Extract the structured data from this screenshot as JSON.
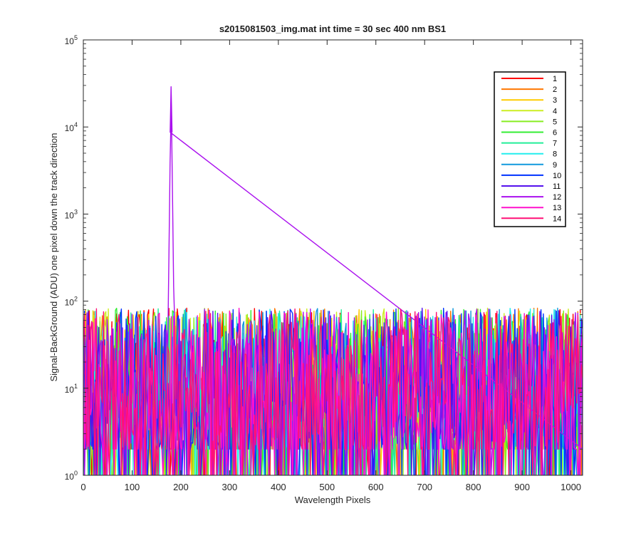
{
  "chart_data": {
    "type": "line",
    "title": "s2015081503_img.mat int time = 30 sec  400 nm BS1",
    "xlabel": "Wavelength Pixels",
    "ylabel": "Signal-BackGround (ADU) one pixel down the track direction",
    "xlim": [
      0,
      1024
    ],
    "ylim": [
      1,
      100000
    ],
    "yscale": "log",
    "x_ticks": [
      0,
      100,
      200,
      300,
      400,
      500,
      600,
      700,
      800,
      900,
      1000
    ],
    "y_ticks": [
      {
        "base": "10",
        "exp": "0",
        "value": 1
      },
      {
        "base": "10",
        "exp": "1",
        "value": 10
      },
      {
        "base": "10",
        "exp": "2",
        "value": 100
      },
      {
        "base": "10",
        "exp": "3",
        "value": 1000
      },
      {
        "base": "10",
        "exp": "4",
        "value": 10000
      },
      {
        "base": "10",
        "exp": "5",
        "value": 100000
      }
    ],
    "grid": false,
    "legend_position": "top-right",
    "noise_summary": {
      "x_range": [
        0,
        1024
      ],
      "typical_range": [
        1,
        90
      ],
      "max_noise": 105
    },
    "peak": {
      "series": "12",
      "x": 180,
      "y": 29000
    },
    "series": [
      {
        "name": "1",
        "color": "#ff0000"
      },
      {
        "name": "2",
        "color": "#ff7700"
      },
      {
        "name": "3",
        "color": "#ffcc00"
      },
      {
        "name": "4",
        "color": "#ccee22"
      },
      {
        "name": "5",
        "color": "#88ee22"
      },
      {
        "name": "6",
        "color": "#33ee33"
      },
      {
        "name": "7",
        "color": "#22ee99"
      },
      {
        "name": "8",
        "color": "#22eeee"
      },
      {
        "name": "9",
        "color": "#1199dd"
      },
      {
        "name": "10",
        "color": "#0033ff"
      },
      {
        "name": "11",
        "color": "#5511ee"
      },
      {
        "name": "12",
        "color": "#aa11ee"
      },
      {
        "name": "13",
        "color": "#ff11cc"
      },
      {
        "name": "14",
        "color": "#ff1177"
      }
    ]
  }
}
